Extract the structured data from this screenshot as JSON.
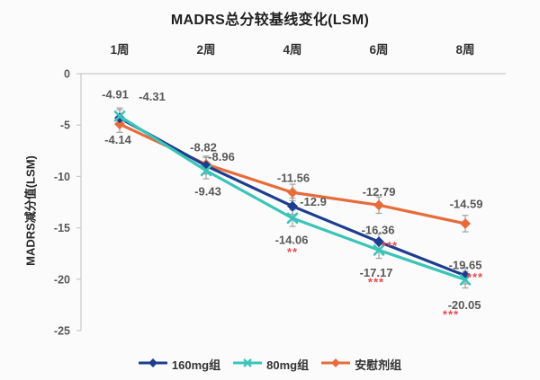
{
  "chart_data": {
    "type": "line",
    "title": "MADRS总分较基线变化(LSM)",
    "ylabel": "MADRS减分值(LSM)",
    "categories": [
      "1周",
      "2周",
      "4周",
      "6周",
      "8周"
    ],
    "ylim": [
      -25,
      0
    ],
    "yticks": [
      0,
      -5,
      -10,
      -15,
      -20,
      -25
    ],
    "grid": false,
    "legend_position": "bottom",
    "error_bar_halfwidth": 0.8,
    "significance_color": "#e84b4f",
    "axis_color": "#c9c9c9",
    "tick_label_color": "#595959",
    "data_label_color": "#595959",
    "series": [
      {
        "name": "160mg组",
        "color": "#1d3d91",
        "marker": "diamond",
        "values": [
          -4.31,
          -8.96,
          -12.9,
          -16.36,
          -19.65
        ],
        "labels": [
          "-4.31",
          "-8.96",
          "-12.9",
          "-16.36",
          "-19.65"
        ],
        "significance": [
          "",
          "",
          "",
          "***",
          "***"
        ]
      },
      {
        "name": "80mg组",
        "color": "#3bc4b8",
        "marker": "x",
        "values": [
          -4.14,
          -9.43,
          -14.06,
          -17.17,
          -20.05
        ],
        "labels": [
          "-4.14",
          "-9.43",
          "-14.06",
          "-17.17",
          "-20.05"
        ],
        "significance": [
          "",
          "",
          "**",
          "***",
          "***"
        ]
      },
      {
        "name": "安慰剂组",
        "color": "#e66c3c",
        "marker": "diamond",
        "values": [
          -4.91,
          -8.82,
          -11.56,
          -12.79,
          -14.59
        ],
        "labels": [
          "-4.91",
          "-8.82",
          "-11.56",
          "-12.79",
          "-14.59"
        ],
        "significance": [
          "",
          "",
          "",
          "",
          ""
        ]
      }
    ]
  }
}
